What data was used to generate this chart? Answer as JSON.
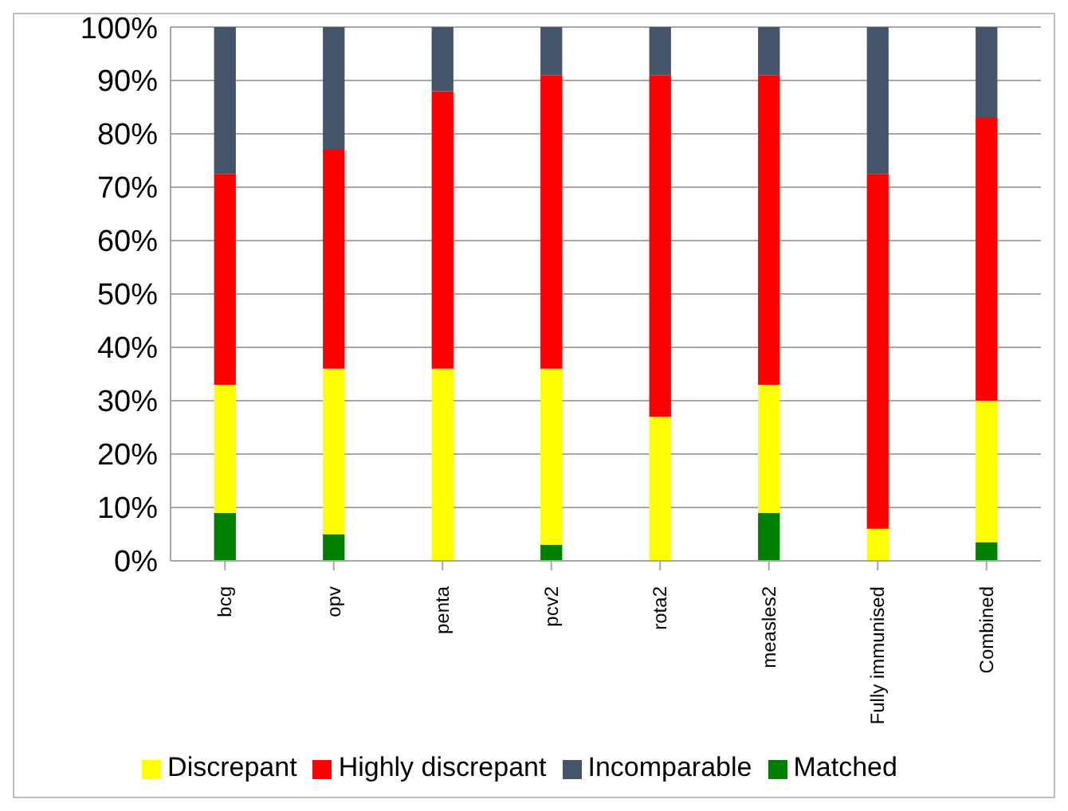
{
  "chart_data": {
    "type": "bar",
    "stacked": true,
    "categories": [
      "bcg",
      "opv",
      "penta",
      "pcv2",
      "rota2",
      "measles2",
      "Fully immunised",
      "Combined"
    ],
    "series": [
      {
        "name": "Matched",
        "color": "#008000",
        "values": [
          9,
          5,
          0,
          3,
          0,
          9,
          0,
          3.5
        ]
      },
      {
        "name": "Discrepant",
        "color": "#ffff00",
        "values": [
          24,
          31,
          36,
          33,
          27,
          24,
          6,
          26.5
        ]
      },
      {
        "name": "Highly discrepant",
        "color": "#ff0000",
        "values": [
          39.5,
          41,
          52,
          55,
          64,
          58,
          66.5,
          53
        ]
      },
      {
        "name": "Incomparable",
        "color": "#44546a",
        "values": [
          27.5,
          23,
          12,
          9,
          9,
          9,
          27.5,
          17
        ]
      }
    ],
    "ylim": [
      0,
      100
    ],
    "yticks": [
      {
        "value": 0,
        "label": "0%"
      },
      {
        "value": 10,
        "label": "10%"
      },
      {
        "value": 20,
        "label": "20%"
      },
      {
        "value": 30,
        "label": "30%"
      },
      {
        "value": 40,
        "label": "40%"
      },
      {
        "value": 50,
        "label": "50%"
      },
      {
        "value": 60,
        "label": "60%"
      },
      {
        "value": 70,
        "label": "70%"
      },
      {
        "value": 80,
        "label": "80%"
      },
      {
        "value": 90,
        "label": "90%"
      },
      {
        "value": 100,
        "label": "100%"
      }
    ],
    "grid": "y",
    "legend": "bottom"
  }
}
